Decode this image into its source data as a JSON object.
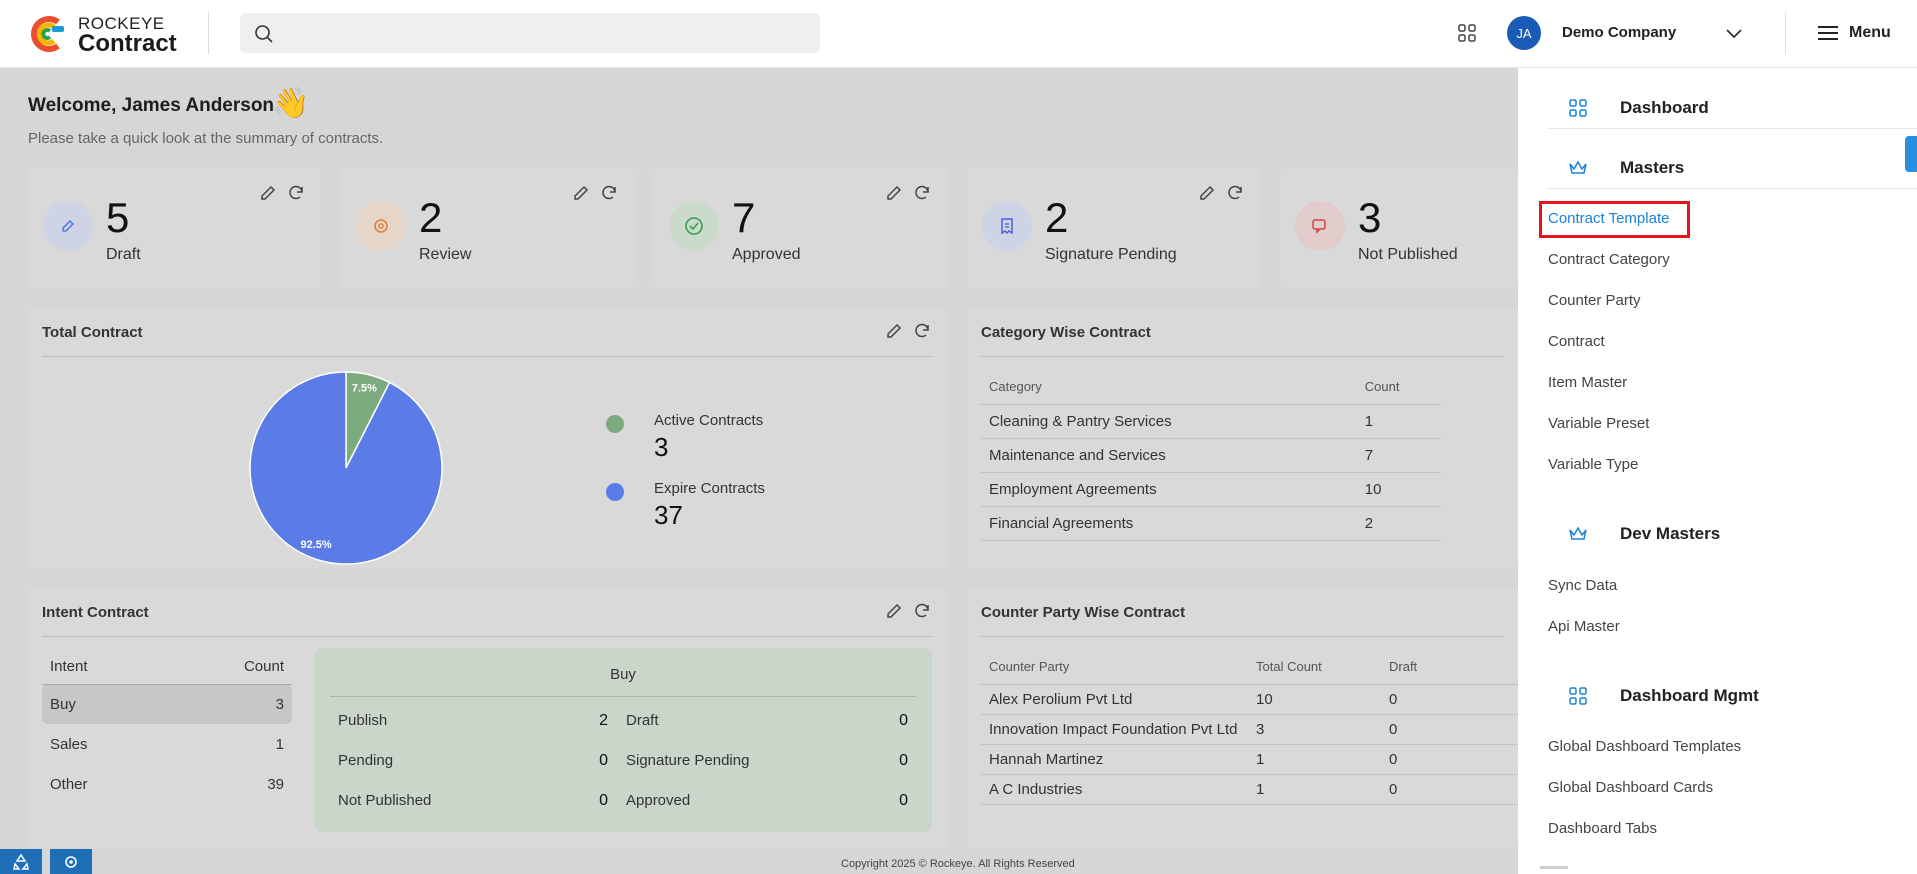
{
  "header": {
    "logo_top": "ROCKEYE",
    "logo_bottom": "Contract",
    "avatar_initials": "JA",
    "company": "Demo Company",
    "menu_label": "Menu"
  },
  "welcome": {
    "title": "Welcome, James Anderson",
    "wave": "👋",
    "subtitle": "Please take a quick look at the summary of contracts."
  },
  "stats": [
    {
      "value": "5",
      "label": "Draft",
      "color": "#5b7fdf",
      "bg": "#cfd3e6"
    },
    {
      "value": "2",
      "label": "Review",
      "color": "#e0813a",
      "bg": "#e5d6c9"
    },
    {
      "value": "7",
      "label": "Approved",
      "color": "#3c9a52",
      "bg": "#cadbcb"
    },
    {
      "value": "2",
      "label": "Signature Pending",
      "color": "#4a62d6",
      "bg": "#cfd3e6"
    },
    {
      "value": "3",
      "label": "Not Published",
      "color": "#d04545",
      "bg": "#e2cccc"
    }
  ],
  "total_contract": {
    "title": "Total Contract",
    "active_label": "Active Contracts",
    "active_value": "3",
    "expire_label": "Expire Contracts",
    "expire_value": "37",
    "active_pct": "7.5%",
    "expire_pct": "92.5%",
    "active_color": "#7dab80",
    "expire_color": "#5b7be6"
  },
  "chart_data": {
    "type": "pie",
    "categories": [
      "Active Contracts",
      "Expire Contracts"
    ],
    "values": [
      3,
      37
    ],
    "percent_labels": [
      "7.5%",
      "92.5%"
    ],
    "title": "Total Contract"
  },
  "category_wise": {
    "title": "Category Wise Contract",
    "headers": [
      "Category",
      "Count"
    ],
    "rows": [
      [
        "Cleaning & Pantry Services",
        "1"
      ],
      [
        "Maintenance and Services",
        "7"
      ],
      [
        "Employment Agreements",
        "10"
      ],
      [
        "Financial Agreements",
        "2"
      ]
    ]
  },
  "intent": {
    "title": "Intent Contract",
    "headers": [
      "Intent",
      "Count"
    ],
    "rows": [
      [
        "Buy",
        "3"
      ],
      [
        "Sales",
        "1"
      ],
      [
        "Other",
        "39"
      ]
    ],
    "detail_title": "Buy",
    "detail": {
      "publish_label": "Publish",
      "publish": "2",
      "draft_label": "Draft",
      "draft": "0",
      "pending_label": "Pending",
      "pending": "0",
      "sigpending_label": "Signature Pending",
      "sigpending": "0",
      "notpub_label": "Not Published",
      "notpub": "0",
      "approved_label": "Approved",
      "approved": "0"
    }
  },
  "counter_party": {
    "title": "Counter Party Wise Contract",
    "headers": [
      "Counter Party",
      "Total Count",
      "Draft"
    ],
    "rows": [
      [
        "Alex Perolium Pvt Ltd",
        "10",
        "0"
      ],
      [
        "Innovation Impact Foundation Pvt Ltd",
        "3",
        "0"
      ],
      [
        "Hannah Martinez",
        "1",
        "0"
      ],
      [
        "A C Industries",
        "1",
        "0"
      ]
    ]
  },
  "footer": "Copyright 2025 © Rockeye. All Rights Reserved",
  "side_menu": {
    "dashboard": "Dashboard",
    "masters": "Masters",
    "masters_items": [
      "Contract Template",
      "Contract Category",
      "Counter Party",
      "Contract",
      "Item Master",
      "Variable Preset",
      "Variable Type"
    ],
    "dev_masters": "Dev Masters",
    "dev_items": [
      "Sync Data",
      "Api Master"
    ],
    "dashboard_mgmt": "Dashboard Mgmt",
    "mgmt_items": [
      "Global Dashboard Templates",
      "Global Dashboard Cards",
      "Dashboard Tabs"
    ]
  }
}
